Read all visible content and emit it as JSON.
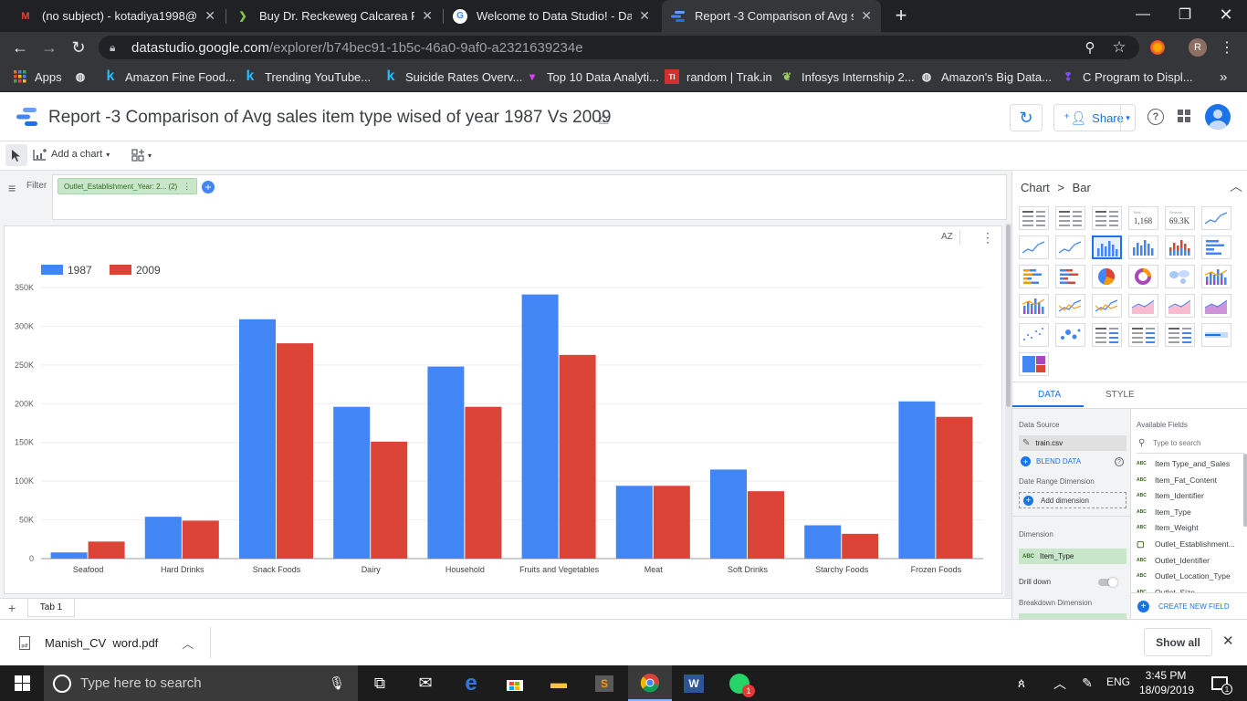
{
  "browser": {
    "tabs": [
      {
        "title": "(no subject) - kotadiya1998@gm",
        "icon": "gmail-icon",
        "active": false
      },
      {
        "title": "Buy Dr. Reckeweg Calcarea Fluori",
        "icon": "leaf-icon",
        "active": false
      },
      {
        "title": "Welcome to Data Studio! - Data S",
        "icon": "google-icon",
        "active": false
      },
      {
        "title": "Report -3 Comparison of  Avg sal",
        "icon": "datastudio-icon",
        "active": true
      }
    ],
    "url_host": "datastudio.google.com",
    "url_path": "/explorer/b74bec91-1b5c-46a0-9af0-a2321639234e",
    "profile_initial": "R",
    "bookmarks": [
      {
        "label": "Apps",
        "icon": "apps-grid-icon"
      },
      {
        "label": "",
        "icon": "globe-icon"
      },
      {
        "label": "Amazon Fine Food...",
        "icon": "kaggle-icon"
      },
      {
        "label": "Trending YouTube...",
        "icon": "kaggle-icon"
      },
      {
        "label": "Suicide Rates Overv...",
        "icon": "kaggle-icon"
      },
      {
        "label": "Top 10 Data Analyti...",
        "icon": "funnel-icon"
      },
      {
        "label": "random | Trak.in",
        "icon": "trakin-icon"
      },
      {
        "label": "Infosys Internship 2...",
        "icon": "leaf-icon"
      },
      {
        "label": "Amazon's Big Data...",
        "icon": "globe-icon"
      },
      {
        "label": "C Program to Displ...",
        "icon": "pin-icon"
      }
    ]
  },
  "report": {
    "title": "Report -3 Comparison of  Avg sales item type wised of year 1987 Vs 2009",
    "share_label": "Share",
    "add_chart_label": "Add a chart",
    "filter_label": "Filter",
    "filter_chip": "Outlet_Establishment_Year: 2... (2)",
    "page_tab": "Tab 1",
    "sort_label": "AZ"
  },
  "chart_data": {
    "type": "bar",
    "categories": [
      "Seafood",
      "Hard Drinks",
      "Snack Foods",
      "Dairy",
      "Household",
      "Fruits and Vegetables",
      "Meat",
      "Soft Drinks",
      "Starchy Foods",
      "Frozen Foods"
    ],
    "series": [
      {
        "name": "1987",
        "color": "#4285f4",
        "values": [
          8000,
          54000,
          309000,
          196000,
          248000,
          341000,
          94000,
          115000,
          43000,
          203000
        ]
      },
      {
        "name": "2009",
        "color": "#db4437",
        "values": [
          22000,
          49000,
          278000,
          151000,
          196000,
          263000,
          94000,
          87000,
          32000,
          183000
        ]
      }
    ],
    "yticks": [
      "0",
      "50K",
      "100K",
      "150K",
      "200K",
      "250K",
      "300K",
      "350K"
    ],
    "ylim": [
      0,
      350000
    ],
    "legend": "top-left",
    "grid": true
  },
  "panel": {
    "breadcrumb_1": "Chart",
    "breadcrumb_sep": ">",
    "breadcrumb_2": "Bar",
    "tab_data": "DATA",
    "tab_style": "STYLE",
    "data_source_label": "Data Source",
    "data_source": "train.csv",
    "blend_label": "BLEND DATA",
    "date_range_label": "Date Range Dimension",
    "add_dimension": "Add dimension",
    "dimension_label": "Dimension",
    "dimension_value": "Item_Type",
    "drill_down_label": "Drill down",
    "breakdown_label": "Breakdown Dimension",
    "available_fields_label": "Available Fields",
    "search_placeholder": "Type to search",
    "create_field_label": "CREATE NEW FIELD",
    "fields": [
      {
        "type": "ABC",
        "name": "Item Type_and_Sales"
      },
      {
        "type": "ABC",
        "name": "Item_Fat_Content"
      },
      {
        "type": "ABC",
        "name": "Item_Identifier"
      },
      {
        "type": "ABC",
        "name": "Item_Type"
      },
      {
        "type": "ABC",
        "name": "Item_Weight"
      },
      {
        "type": "date",
        "name": "Outlet_Establishment..."
      },
      {
        "type": "ABC",
        "name": "Outlet_Identifier"
      },
      {
        "type": "ABC",
        "name": "Outlet_Location_Type"
      },
      {
        "type": "ABC",
        "name": "Outlet_Size"
      }
    ],
    "thumb_total": "1,168",
    "thumb_scorecard": "69.3K",
    "thumb_total_caption": "Total",
    "thumb_scorecard_caption": "Session"
  },
  "download": {
    "file": "Manish_CV  word.pdf",
    "show_all": "Show all"
  },
  "taskbar": {
    "search_placeholder": "Type here to search",
    "lang": "ENG",
    "time": "3:45 PM",
    "date": "18/09/2019",
    "whatsapp_badge": "1",
    "notif_count": "1"
  }
}
